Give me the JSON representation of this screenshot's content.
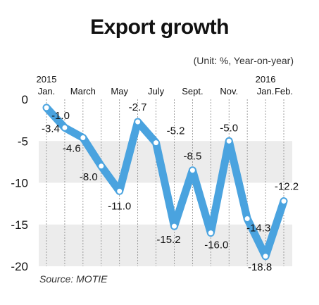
{
  "chart_data": {
    "type": "line",
    "title": "Export growth",
    "subtitle": "(Unit: %, Year-on-year)",
    "source": "Source: MOTIE",
    "ylim": [
      -20,
      0
    ],
    "yticks": [
      "0",
      "-5",
      "-10",
      "-15",
      "-20"
    ],
    "ytick_values": [
      0,
      -5,
      -10,
      -15,
      -20
    ],
    "x_tick_labels": [
      {
        "index": 0,
        "lines": [
          "2015",
          "Jan."
        ]
      },
      {
        "index": 2,
        "lines": [
          "March"
        ]
      },
      {
        "index": 4,
        "lines": [
          "May"
        ]
      },
      {
        "index": 6,
        "lines": [
          "July"
        ]
      },
      {
        "index": 8,
        "lines": [
          "Sept."
        ]
      },
      {
        "index": 10,
        "lines": [
          "Nov."
        ]
      },
      {
        "index": 12,
        "lines": [
          "2016",
          "Jan."
        ]
      },
      {
        "index": 13,
        "lines": [
          "Feb."
        ]
      }
    ],
    "values": [
      -1.0,
      -3.4,
      -4.6,
      -8.0,
      -11.0,
      -2.7,
      -5.2,
      -15.2,
      -8.5,
      -16.0,
      -5.0,
      -14.3,
      -18.8,
      -12.2
    ],
    "data_labels": [
      "-1.0",
      "-3.4",
      "-4.6",
      "-8.0",
      "-11.0",
      "-2.7",
      "-5.2",
      "-15.2",
      "-8.5",
      "-16.0",
      "-5.0",
      "-14.3",
      "-18.8",
      "-12.2"
    ],
    "grid": "alternating horizontal bands",
    "colors": {
      "line": "#4aa3df",
      "band": "#ececec",
      "marker_fill": "#ffffff"
    }
  }
}
